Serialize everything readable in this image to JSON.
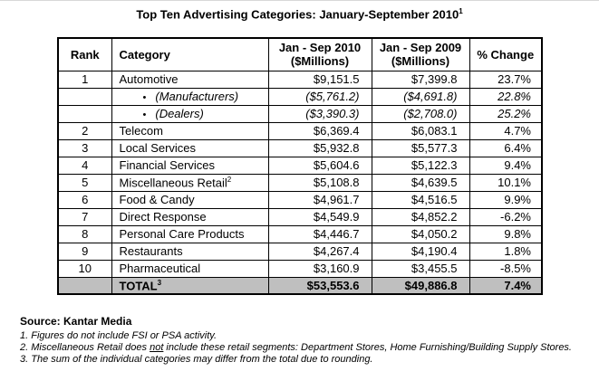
{
  "title": {
    "text": "Top Ten Advertising Categories: January-September 2010",
    "sup": "1"
  },
  "table": {
    "headers": {
      "rank": "Rank",
      "category": "Category",
      "y2010": {
        "line1": "Jan - Sep 2010",
        "line2": "($Millions)"
      },
      "y2009": {
        "line1": "Jan - Sep 2009",
        "line2": "($Millions)"
      },
      "change": "% Change"
    },
    "rows": [
      {
        "rank": "1",
        "category": "Automotive",
        "y2010": "$9,151.5",
        "y2009": "$7,399.8",
        "change": "23.7%"
      },
      {
        "rank": "",
        "bullet": "•",
        "category": "(Manufacturers)",
        "y2010": "($5,761.2)",
        "y2009": "($4,691.8)",
        "change": "22.8%"
      },
      {
        "rank": "",
        "bullet": "•",
        "category": "(Dealers)",
        "y2010": "($3,390.3)",
        "y2009": "($2,708.0)",
        "change": "25.2%"
      },
      {
        "rank": "2",
        "category": "Telecom",
        "y2010": "$6,369.4",
        "y2009": "$6,083.1",
        "change": "4.7%"
      },
      {
        "rank": "3",
        "category": "Local Services",
        "y2010": "$5,932.8",
        "y2009": "$5,577.3",
        "change": "6.4%"
      },
      {
        "rank": "4",
        "category": "Financial Services",
        "y2010": "$5,604.6",
        "y2009": "$5,122.3",
        "change": "9.4%"
      },
      {
        "rank": "5",
        "category": "Miscellaneous Retail",
        "sup": "2",
        "y2010": "$5,108.8",
        "y2009": "$4,639.5",
        "change": "10.1%"
      },
      {
        "rank": "6",
        "category": "Food & Candy",
        "y2010": "$4,961.7",
        "y2009": "$4,516.5",
        "change": "9.9%"
      },
      {
        "rank": "7",
        "category": "Direct Response",
        "y2010": "$4,549.9",
        "y2009": "$4,852.2",
        "change": "-6.2%"
      },
      {
        "rank": "8",
        "category": "Personal Care Products",
        "y2010": "$4,446.7",
        "y2009": "$4,050.2",
        "change": "9.8%"
      },
      {
        "rank": "9",
        "category": "Restaurants",
        "y2010": "$4,267.4",
        "y2009": "$4,190.4",
        "change": "1.8%"
      },
      {
        "rank": "10",
        "category": "Pharmaceutical",
        "y2010": "$3,160.9",
        "y2009": "$3,455.5",
        "change": "-8.5%"
      }
    ],
    "total": {
      "label": "TOTAL",
      "sup": "3",
      "y2010": "$53,553.6",
      "y2009": "$49,886.8",
      "change": "7.4%"
    }
  },
  "footer": {
    "source": "Source: Kantar Media",
    "note1": "1. Figures do not include FSI or PSA activity.",
    "note2": {
      "pre": "2. Miscellaneous Retail does ",
      "underlined": "not",
      "post": " include these retail segments: Department Stores, Home Furnishing/Building Supply Stores."
    },
    "note3": "3. The sum of the individual categories may differ from the total due to rounding."
  }
}
